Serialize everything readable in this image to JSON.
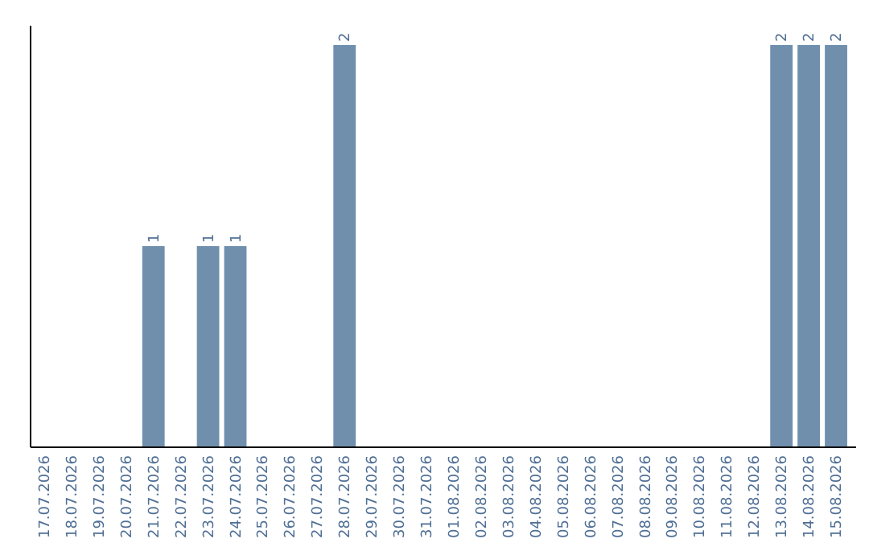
{
  "chart_data": {
    "type": "bar",
    "categories": [
      "17.07.2026",
      "18.07.2026",
      "19.07.2026",
      "20.07.2026",
      "21.07.2026",
      "22.07.2026",
      "23.07.2026",
      "24.07.2026",
      "25.07.2026",
      "26.07.2026",
      "27.07.2026",
      "28.07.2026",
      "29.07.2026",
      "30.07.2026",
      "31.07.2026",
      "01.08.2026",
      "02.08.2026",
      "03.08.2026",
      "04.08.2026",
      "05.08.2026",
      "06.08.2026",
      "07.08.2026",
      "08.08.2026",
      "09.08.2026",
      "10.08.2026",
      "11.08.2026",
      "12.08.2026",
      "13.08.2026",
      "14.08.2026",
      "15.08.2026"
    ],
    "values": [
      0,
      0,
      0,
      0,
      1,
      0,
      1,
      1,
      0,
      0,
      0,
      2,
      0,
      0,
      0,
      0,
      0,
      0,
      0,
      0,
      0,
      0,
      0,
      0,
      0,
      0,
      0,
      2,
      2,
      2
    ],
    "value_labels": [
      null,
      null,
      null,
      null,
      "1",
      null,
      "1",
      "1",
      null,
      null,
      null,
      "2",
      null,
      null,
      null,
      null,
      null,
      null,
      null,
      null,
      null,
      null,
      null,
      null,
      null,
      null,
      null,
      "2",
      "2",
      "2"
    ],
    "color": "#6f8fad",
    "ylim": [
      0,
      2
    ],
    "tick_labels": "x"
  }
}
